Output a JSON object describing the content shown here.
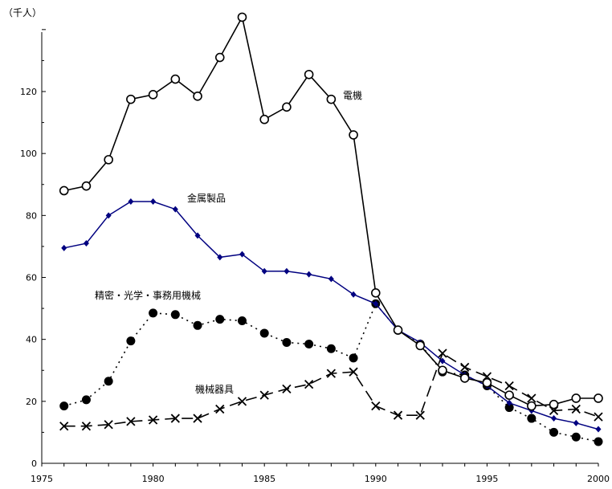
{
  "chart_data": {
    "type": "line",
    "title": "",
    "xlabel": "",
    "ylabel": "（千人）",
    "xlim": [
      1975,
      2000
    ],
    "ylim": [
      0,
      140
    ],
    "x_ticks": [
      "1975",
      "1980",
      "1985",
      "1990",
      "1995",
      "2000"
    ],
    "y_ticks": [
      "0",
      "20",
      "40",
      "60",
      "80",
      "100",
      "120"
    ],
    "grid": false,
    "x": [
      1976,
      1977,
      1978,
      1979,
      1980,
      1981,
      1982,
      1983,
      1984,
      1985,
      1986,
      1987,
      1988,
      1989,
      1990,
      1991,
      1992,
      1993,
      1994,
      1995,
      1996,
      1997,
      1998,
      1999,
      2000
    ],
    "series": [
      {
        "name": "電機",
        "style": "solid-open-circle",
        "color": "#000000",
        "values": [
          88,
          89.5,
          98,
          117.5,
          119,
          124,
          118.5,
          131,
          144,
          111,
          115,
          125.5,
          117.5,
          106,
          55,
          43,
          38,
          30,
          27.5,
          26,
          22,
          18.5,
          19,
          21,
          21
        ]
      },
      {
        "name": "金属製品",
        "style": "solid-diamond",
        "color": "#000080",
        "values": [
          69.5,
          71,
          80,
          84.5,
          84.5,
          82,
          73.5,
          66.5,
          67.5,
          62,
          62,
          61,
          59.5,
          54.5,
          51.5,
          43,
          39,
          33,
          28.5,
          25,
          19.5,
          17,
          14.5,
          13,
          11
        ]
      },
      {
        "name": "精密・光学・事務用機械",
        "style": "dotted-filled-circle",
        "color": "#000000",
        "values": [
          18.5,
          20.5,
          26.5,
          39.5,
          48.5,
          48,
          44.5,
          46.5,
          46,
          42,
          39,
          38.5,
          37,
          34,
          51.5,
          43,
          38.5,
          29.5,
          28.5,
          25,
          18,
          14.5,
          10,
          8.5,
          7
        ]
      },
      {
        "name": "機械器具",
        "style": "dashed-cross",
        "color": "#000000",
        "values": [
          12,
          12,
          12.5,
          13.5,
          14,
          14.5,
          14.5,
          17.5,
          20,
          22,
          24,
          25.5,
          29,
          29.5,
          18.5,
          15.5,
          15.5,
          35.5,
          31,
          28,
          25,
          21,
          17,
          17.5,
          15
        ]
      }
    ]
  }
}
